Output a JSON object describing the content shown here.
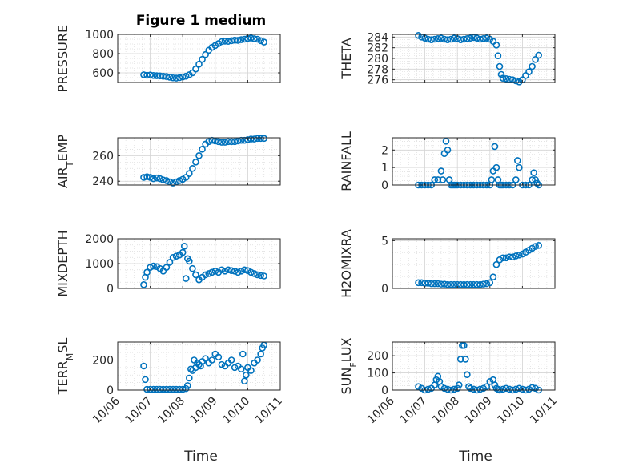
{
  "figure_title": "Figure 1 medium",
  "x_axis_label": "Time",
  "x_tick_labels": [
    "10/06",
    "10/07",
    "10/08",
    "10/09",
    "10/10",
    "10/11"
  ],
  "series_color": "#0072BD",
  "chart_data": [
    {
      "type": "scatter",
      "ylabel": "PRESSURE",
      "ylim": [
        500,
        1000
      ],
      "yticks": [
        600,
        800,
        1000
      ],
      "x": [
        6.8,
        6.9,
        7.0,
        7.1,
        7.2,
        7.3,
        7.4,
        7.5,
        7.6,
        7.7,
        7.8,
        7.9,
        8.0,
        8.1,
        8.2,
        8.3,
        8.4,
        8.5,
        8.6,
        8.7,
        8.8,
        8.9,
        9.0,
        9.1,
        9.2,
        9.3,
        9.4,
        9.5,
        9.6,
        9.7,
        9.8,
        9.9,
        10.0,
        10.1,
        10.2,
        10.3,
        10.4,
        10.5
      ],
      "y": [
        580,
        575,
        578,
        572,
        570,
        568,
        565,
        562,
        555,
        548,
        545,
        550,
        558,
        565,
        580,
        600,
        640,
        690,
        740,
        790,
        835,
        865,
        885,
        905,
        925,
        930,
        928,
        935,
        940,
        938,
        945,
        950,
        958,
        962,
        955,
        950,
        935,
        920
      ]
    },
    {
      "type": "scatter",
      "ylabel": "THETA",
      "ylim": [
        275.5,
        284.5
      ],
      "yticks": [
        276,
        278,
        280,
        282,
        284
      ],
      "x": [
        6.8,
        6.9,
        7.0,
        7.1,
        7.2,
        7.3,
        7.4,
        7.5,
        7.6,
        7.7,
        7.8,
        7.9,
        8.0,
        8.1,
        8.2,
        8.3,
        8.4,
        8.5,
        8.6,
        8.7,
        8.8,
        8.9,
        9.0,
        9.1,
        9.2,
        9.25,
        9.3,
        9.35,
        9.4,
        9.5,
        9.6,
        9.7,
        9.8,
        9.9,
        10.0,
        10.1,
        10.2,
        10.3,
        10.4,
        10.5
      ],
      "y": [
        284.3,
        284.0,
        283.8,
        283.6,
        283.5,
        283.6,
        283.7,
        283.8,
        283.6,
        283.5,
        283.6,
        283.8,
        283.7,
        283.5,
        283.6,
        283.7,
        283.8,
        283.9,
        283.8,
        283.6,
        283.7,
        283.8,
        283.6,
        283.2,
        282.5,
        280.5,
        278.5,
        277.0,
        276.3,
        276.2,
        276.1,
        276.0,
        275.8,
        275.6,
        276.0,
        276.8,
        277.5,
        278.5,
        279.8,
        280.6
      ]
    },
    {
      "type": "scatter",
      "ylabel": "AIR_TEMP",
      "ylim": [
        237,
        274
      ],
      "yticks": [
        240,
        260
      ],
      "x": [
        6.8,
        6.9,
        7.0,
        7.1,
        7.2,
        7.3,
        7.4,
        7.5,
        7.6,
        7.7,
        7.8,
        7.9,
        8.0,
        8.1,
        8.2,
        8.3,
        8.4,
        8.5,
        8.6,
        8.7,
        8.8,
        8.9,
        9.0,
        9.1,
        9.2,
        9.3,
        9.4,
        9.5,
        9.6,
        9.7,
        9.8,
        9.9,
        10.0,
        10.1,
        10.2,
        10.3,
        10.4,
        10.5
      ],
      "y": [
        243,
        243.5,
        243,
        242,
        242.5,
        242,
        241,
        240.5,
        239.5,
        238.5,
        239.5,
        240.5,
        241.5,
        243,
        246,
        250,
        255,
        260,
        265,
        269,
        271,
        272,
        271.5,
        271,
        270.5,
        270.5,
        271,
        271,
        271,
        271.5,
        272,
        272,
        272.5,
        273,
        273,
        273.5,
        273.5,
        273.5
      ]
    },
    {
      "type": "scatter",
      "ylabel": "RAINFALL",
      "ylim": [
        0,
        2.7
      ],
      "yticks": [
        0,
        1,
        2
      ],
      "x": [
        6.8,
        6.9,
        7.0,
        7.1,
        7.2,
        7.3,
        7.4,
        7.5,
        7.55,
        7.6,
        7.65,
        7.7,
        7.75,
        7.8,
        7.85,
        7.9,
        7.95,
        8.0,
        8.1,
        8.2,
        8.3,
        8.4,
        8.5,
        8.6,
        8.7,
        8.8,
        8.9,
        9.0,
        9.05,
        9.1,
        9.15,
        9.2,
        9.25,
        9.3,
        9.35,
        9.4,
        9.5,
        9.6,
        9.7,
        9.8,
        9.85,
        9.9,
        10.0,
        10.1,
        10.2,
        10.3,
        10.35,
        10.4,
        10.45,
        10.5
      ],
      "y": [
        0,
        0,
        0,
        0,
        0,
        0.3,
        0.3,
        0.8,
        0.3,
        1.8,
        2.5,
        2.0,
        0.3,
        0,
        0,
        0,
        0,
        0,
        0,
        0,
        0,
        0,
        0,
        0,
        0,
        0,
        0,
        0,
        0.3,
        0.8,
        2.2,
        1.0,
        0.3,
        0,
        0,
        0,
        0,
        0,
        0,
        0.3,
        1.4,
        1.0,
        0,
        0,
        0,
        0.3,
        0.7,
        0.3,
        0.1,
        0
      ]
    },
    {
      "type": "scatter",
      "ylabel": "MIXDEPTH",
      "ylim": [
        0,
        2000
      ],
      "yticks": [
        0,
        1000,
        2000
      ],
      "x": [
        6.8,
        6.85,
        6.9,
        7.0,
        7.1,
        7.2,
        7.3,
        7.4,
        7.5,
        7.6,
        7.7,
        7.8,
        7.9,
        8.0,
        8.05,
        8.1,
        8.15,
        8.2,
        8.3,
        8.4,
        8.5,
        8.6,
        8.7,
        8.8,
        8.9,
        9.0,
        9.1,
        9.2,
        9.3,
        9.4,
        9.5,
        9.6,
        9.7,
        9.8,
        9.9,
        10.0,
        10.1,
        10.2,
        10.3,
        10.4,
        10.5
      ],
      "y": [
        150,
        450,
        650,
        850,
        900,
        880,
        800,
        700,
        850,
        1050,
        1250,
        1300,
        1350,
        1450,
        1700,
        400,
        1200,
        1100,
        800,
        550,
        350,
        450,
        550,
        600,
        650,
        700,
        650,
        750,
        700,
        750,
        720,
        700,
        650,
        700,
        750,
        720,
        650,
        600,
        550,
        520,
        500
      ]
    },
    {
      "type": "scatter",
      "ylabel": "H2OMIXRA",
      "ylim": [
        0,
        5.2
      ],
      "yticks": [
        0,
        5
      ],
      "x": [
        6.8,
        6.9,
        7.0,
        7.1,
        7.2,
        7.3,
        7.4,
        7.5,
        7.6,
        7.7,
        7.8,
        7.9,
        8.0,
        8.1,
        8.2,
        8.3,
        8.4,
        8.5,
        8.6,
        8.7,
        8.8,
        8.9,
        9.0,
        9.1,
        9.2,
        9.3,
        9.4,
        9.5,
        9.6,
        9.7,
        9.8,
        9.9,
        10.0,
        10.1,
        10.2,
        10.3,
        10.4,
        10.5
      ],
      "y": [
        0.6,
        0.6,
        0.55,
        0.55,
        0.5,
        0.5,
        0.5,
        0.45,
        0.45,
        0.4,
        0.4,
        0.4,
        0.4,
        0.4,
        0.4,
        0.4,
        0.4,
        0.4,
        0.4,
        0.4,
        0.45,
        0.5,
        0.6,
        1.2,
        2.5,
        3.0,
        3.2,
        3.2,
        3.3,
        3.3,
        3.4,
        3.5,
        3.6,
        3.8,
        4.0,
        4.2,
        4.4,
        4.5
      ]
    },
    {
      "type": "scatter",
      "ylabel": "TERR_MSL",
      "ylim": [
        0,
        320
      ],
      "yticks": [
        0,
        200
      ],
      "x": [
        6.8,
        6.85,
        6.9,
        7.0,
        7.1,
        7.2,
        7.3,
        7.4,
        7.5,
        7.6,
        7.7,
        7.8,
        7.9,
        8.0,
        8.1,
        8.15,
        8.2,
        8.25,
        8.3,
        8.35,
        8.4,
        8.45,
        8.5,
        8.55,
        8.6,
        8.7,
        8.8,
        8.9,
        9.0,
        9.1,
        9.2,
        9.3,
        9.4,
        9.5,
        9.6,
        9.7,
        9.8,
        9.85,
        9.9,
        9.95,
        10.0,
        10.1,
        10.2,
        10.3,
        10.4,
        10.45,
        10.5
      ],
      "y": [
        160,
        70,
        5,
        5,
        5,
        5,
        5,
        5,
        5,
        5,
        5,
        5,
        5,
        5,
        10,
        30,
        80,
        140,
        130,
        200,
        150,
        180,
        170,
        160,
        190,
        210,
        180,
        200,
        240,
        220,
        170,
        160,
        180,
        200,
        150,
        160,
        140,
        240,
        60,
        100,
        150,
        130,
        180,
        200,
        240,
        280,
        300
      ]
    },
    {
      "type": "scatter",
      "ylabel": "SUN_FLUX",
      "ylim": [
        0,
        280
      ],
      "yticks": [
        0,
        100,
        200
      ],
      "x": [
        6.8,
        6.9,
        7.0,
        7.1,
        7.2,
        7.3,
        7.35,
        7.4,
        7.45,
        7.5,
        7.6,
        7.7,
        7.8,
        7.9,
        8.0,
        8.05,
        8.1,
        8.15,
        8.2,
        8.25,
        8.3,
        8.35,
        8.4,
        8.5,
        8.6,
        8.7,
        8.8,
        8.9,
        9.0,
        9.1,
        9.15,
        9.2,
        9.25,
        9.3,
        9.4,
        9.5,
        9.6,
        9.7,
        9.8,
        9.9,
        10.0,
        10.1,
        10.2,
        10.3,
        10.4,
        10.5
      ],
      "y": [
        20,
        10,
        0,
        5,
        10,
        30,
        60,
        80,
        50,
        20,
        10,
        5,
        0,
        5,
        10,
        30,
        180,
        260,
        260,
        180,
        90,
        20,
        10,
        5,
        0,
        5,
        10,
        20,
        50,
        60,
        30,
        10,
        5,
        0,
        5,
        10,
        5,
        0,
        5,
        10,
        5,
        0,
        5,
        15,
        10,
        0
      ]
    }
  ]
}
